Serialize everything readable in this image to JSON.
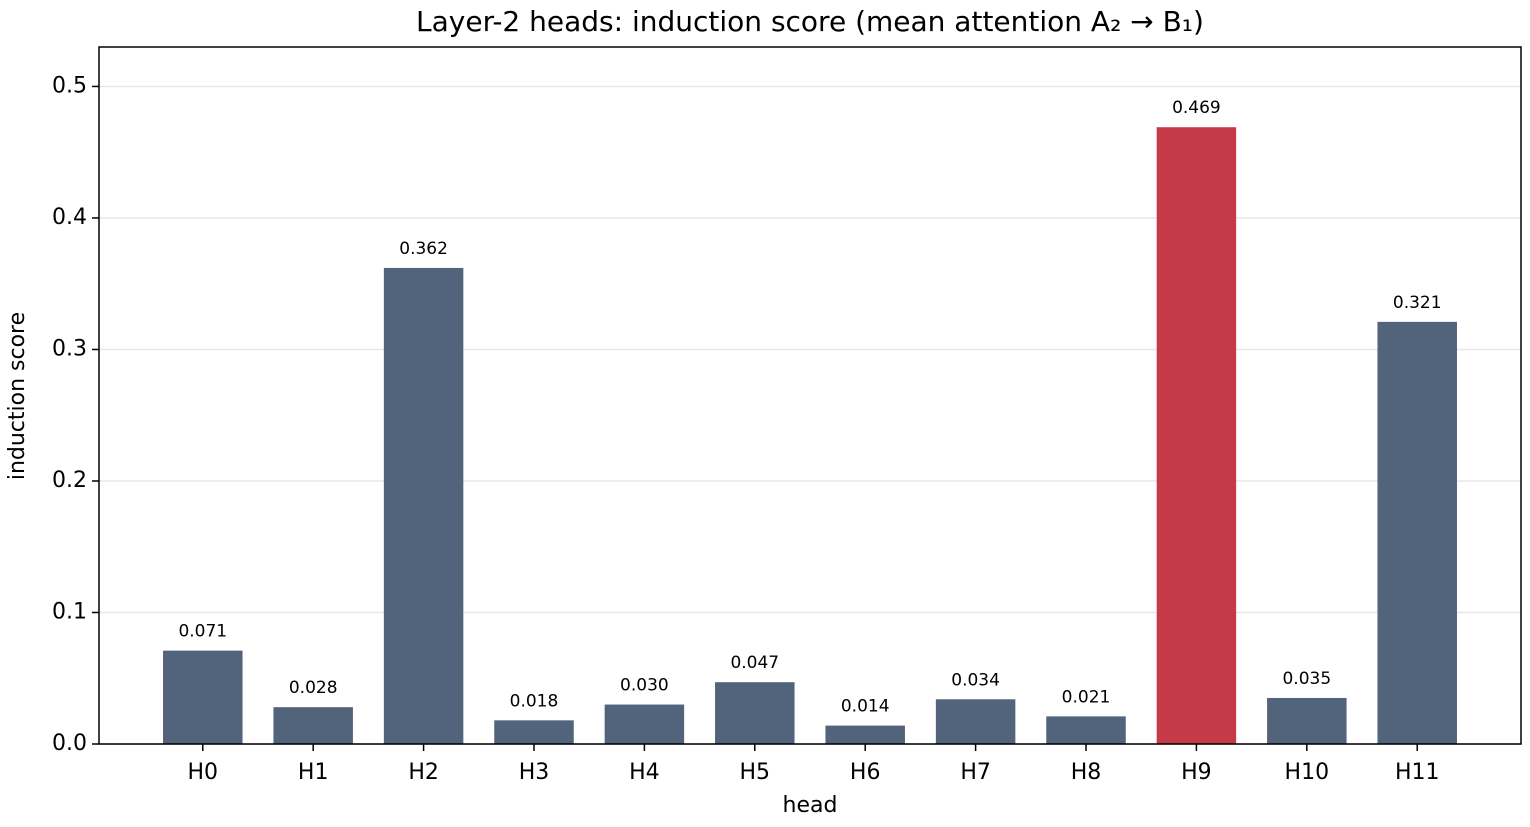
{
  "chart_data": {
    "type": "bar",
    "title": "Layer-2 heads: induction score  (mean attention A₂ → B₁)",
    "x_label": "head",
    "y_label": "induction score",
    "categories": [
      "H0",
      "H1",
      "H2",
      "H3",
      "H4",
      "H5",
      "H6",
      "H7",
      "H8",
      "H9",
      "H10",
      "H11"
    ],
    "values": [
      0.071,
      0.028,
      0.362,
      0.018,
      0.03,
      0.047,
      0.014,
      0.034,
      0.021,
      0.469,
      0.035,
      0.321
    ],
    "value_labels": [
      "0.071",
      "0.028",
      "0.362",
      "0.018",
      "0.030",
      "0.047",
      "0.014",
      "0.034",
      "0.021",
      "0.469",
      "0.035",
      "0.321"
    ],
    "colors": [
      "#52637c",
      "#52637c",
      "#52637c",
      "#52637c",
      "#52637c",
      "#52637c",
      "#52637c",
      "#52637c",
      "#52637c",
      "#c63a48",
      "#52637c",
      "#52637c"
    ],
    "ylim": [
      0,
      0.53
    ],
    "yticks": [
      {
        "value": 0,
        "label": "0.0"
      },
      0.1,
      0.2,
      0.3,
      0.4,
      0.5
    ],
    "grid": true
  }
}
